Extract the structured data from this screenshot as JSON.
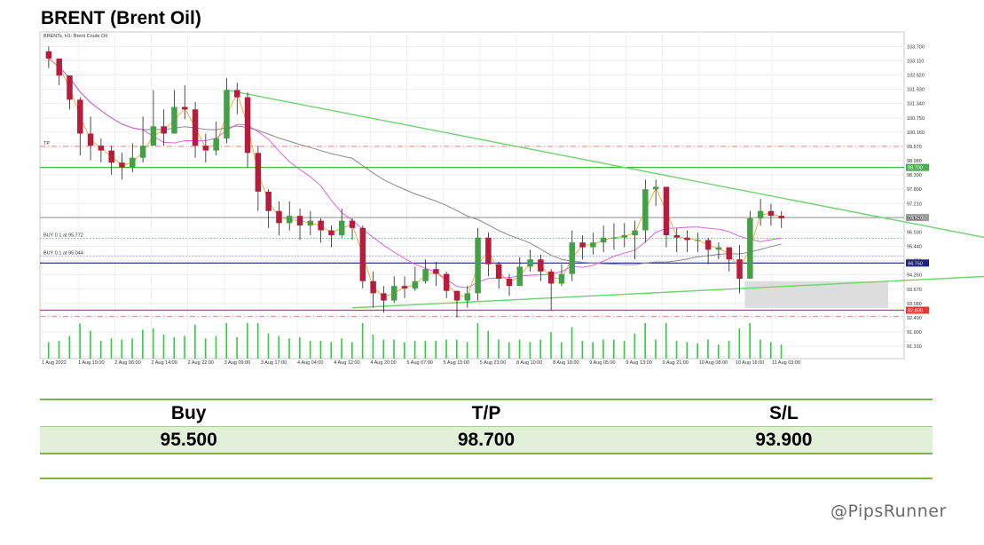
{
  "title": "BRENT (Brent Oil)",
  "chart_data": {
    "type": "candlestick",
    "symbol_label": "BRENTs, H1: Brent Crude Oil",
    "ylim": [
      90.8,
      104.3
    ],
    "y_ticks": [
      "103.700",
      "103.110",
      "102.520",
      "101.930",
      "101.340",
      "100.750",
      "100.160",
      "99.570",
      "98.980",
      "98.390",
      "97.800",
      "97.210",
      "96.620",
      "96.030",
      "95.440",
      "94.850",
      "94.260",
      "93.670",
      "93.080",
      "92.490",
      "91.900",
      "91.310"
    ],
    "x_ticks": [
      "1 Aug 2022",
      "1 Aug 19:00",
      "2 Aug 06:00",
      "2 Aug 14:00",
      "2 Aug 22:00",
      "3 Aug 09:00",
      "3 Aug 17:00",
      "4 Aug 04:00",
      "4 Aug 12:00",
      "4 Aug 20:00",
      "5 Aug 07:00",
      "5 Aug 15:00",
      "5 Aug 23:00",
      "8 Aug 10:00",
      "8 Aug 18:00",
      "9 Aug 05:00",
      "9 Aug 13:00",
      "9 Aug 21:00",
      "10 Aug 08:00",
      "10 Aug 16:00",
      "11 Aug 03:00"
    ],
    "closes": [
      103.2,
      102.5,
      101.5,
      100.1,
      99.6,
      99.4,
      98.9,
      98.7,
      99.1,
      99.6,
      100.4,
      100.1,
      101.2,
      101.1,
      99.6,
      99.4,
      99.9,
      101.9,
      101.6,
      99.3,
      97.7,
      96.9,
      96.4,
      96.7,
      96.3,
      96.5,
      96.1,
      95.9,
      96.5,
      96.2,
      94.0,
      93.5,
      93.2,
      93.8,
      93.7,
      94.0,
      94.5,
      94.3,
      93.6,
      93.2,
      93.5,
      95.8,
      94.7,
      94.1,
      93.8,
      94.6,
      94.9,
      94.4,
      93.9,
      94.3,
      95.6,
      95.4,
      95.6,
      95.8,
      95.8,
      95.9,
      96.1,
      97.8,
      97.9,
      95.9,
      95.8,
      95.7,
      95.7,
      95.3,
      95.4,
      94.9,
      94.1,
      96.6,
      96.9,
      96.7,
      96.6
    ],
    "highs": [
      103.7,
      103.1,
      102.5,
      101.6,
      100.8,
      99.9,
      99.6,
      99.3,
      99.7,
      100.8,
      101.9,
      101.1,
      101.9,
      102.1,
      101.4,
      100.1,
      100.6,
      102.4,
      102.2,
      101.8,
      99.6,
      97.8,
      97.3,
      97.3,
      97.0,
      96.9,
      96.6,
      96.3,
      97.0,
      96.6,
      96.3,
      94.4,
      93.8,
      94.2,
      94.2,
      94.6,
      94.9,
      94.8,
      94.4,
      93.6,
      93.8,
      96.2,
      96.0,
      94.8,
      94.3,
      95.0,
      95.3,
      95.1,
      94.5,
      94.7,
      96.1,
      95.9,
      96.0,
      96.3,
      96.4,
      96.4,
      96.5,
      98.2,
      98.2,
      97.9,
      96.2,
      96.1,
      96.0,
      95.8,
      95.6,
      95.4,
      95.5,
      96.9,
      97.4,
      97.2,
      96.9
    ],
    "lows": [
      102.8,
      102.1,
      101.1,
      99.2,
      99.0,
      98.9,
      98.4,
      98.2,
      98.5,
      98.9,
      99.9,
      99.6,
      100.6,
      100.7,
      99.1,
      98.9,
      99.2,
      99.7,
      100.9,
      98.7,
      96.9,
      96.2,
      95.9,
      96.1,
      95.7,
      95.9,
      95.6,
      95.4,
      95.8,
      95.7,
      93.7,
      92.9,
      92.7,
      93.1,
      93.3,
      93.6,
      93.9,
      93.8,
      93.3,
      92.5,
      92.9,
      93.2,
      94.2,
      93.7,
      93.4,
      93.9,
      94.4,
      94.0,
      92.8,
      93.8,
      94.0,
      94.9,
      95.1,
      95.2,
      95.3,
      95.4,
      94.9,
      95.6,
      97.1,
      95.4,
      95.2,
      95.2,
      95.2,
      94.7,
      94.9,
      94.4,
      93.5,
      94.1,
      96.3,
      96.3,
      96.2
    ],
    "levels": [
      {
        "price": 99.57,
        "label": "TP",
        "style": "dashdot",
        "color": "#e57373"
      },
      {
        "price": 98.7,
        "label": "98.700",
        "style": "solid",
        "color": "#4caf50"
      },
      {
        "price": 96.63,
        "label": "96.630",
        "style": "solid",
        "color": "#9e9e9e"
      },
      {
        "price": 95.772,
        "label": "BUY 0.1 at 95.772",
        "style": "dotted",
        "color": "#66bb6a"
      },
      {
        "price": 95.044,
        "label": "BUY 0.1 at 95.044",
        "style": "dotted",
        "color": "#7986cb"
      },
      {
        "price": 94.75,
        "label": "94.750",
        "style": "solid",
        "color": "#1a237e"
      },
      {
        "price": 92.8,
        "label": "92.800",
        "style": "solid",
        "color": "#e53935"
      },
      {
        "price": 92.55,
        "label": "",
        "style": "dashdot",
        "color": "#e57373"
      }
    ],
    "grid": true,
    "volume": true,
    "trendlines": [
      {
        "from": [
          17,
          101.9
        ],
        "to": [
          99,
          95.0
        ]
      },
      {
        "from": [
          29,
          92.9
        ],
        "to": [
          99,
          94.4
        ]
      }
    ]
  },
  "signal": {
    "headers": [
      "Buy",
      "T/P",
      "S/L"
    ],
    "values": [
      "95.500",
      "98.700",
      "93.900"
    ]
  },
  "watermark": "@PipsRunner"
}
